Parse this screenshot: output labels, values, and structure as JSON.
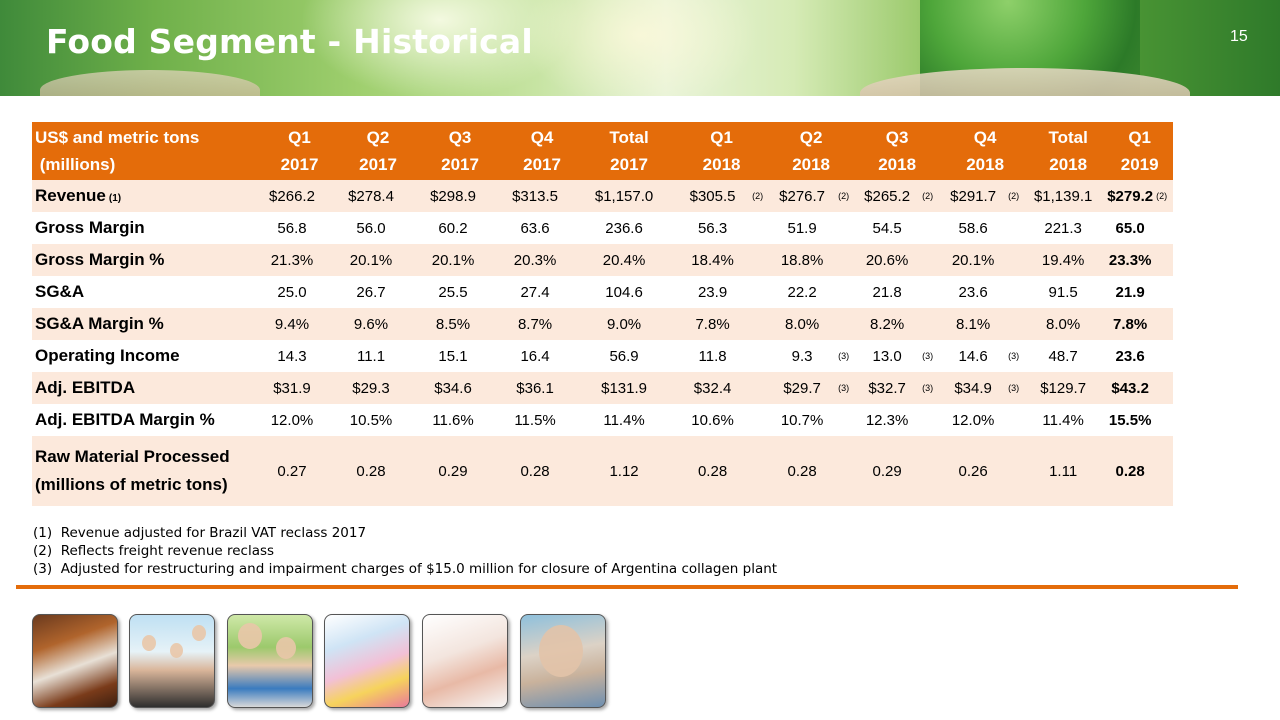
{
  "header": {
    "title": "Food Segment - Historical",
    "page_number": "15"
  },
  "table": {
    "header_label_line1": "US$ and metric tons",
    "header_label_line2": " (millions)",
    "columns": [
      {
        "line1": "Q1",
        "line2": "2017"
      },
      {
        "line1": "Q2",
        "line2": "2017"
      },
      {
        "line1": "Q3",
        "line2": "2017"
      },
      {
        "line1": "Q4",
        "line2": "2017"
      },
      {
        "line1": "Total",
        "line2": "2017"
      },
      {
        "line1": "Q1",
        "line2": "2018"
      },
      {
        "line1": "Q2",
        "line2": "2018"
      },
      {
        "line1": "Q3",
        "line2": "2018"
      },
      {
        "line1": "Q4",
        "line2": "2018"
      },
      {
        "line1": "Total",
        "line2": "2018"
      },
      {
        "line1": "Q1",
        "line2": "2019"
      }
    ],
    "rows": [
      {
        "label": "Revenue",
        "label_note": "(1)",
        "values": [
          "$266.2",
          "$278.4",
          "$298.9",
          "$313.5",
          "$1,157.0",
          "$305.5",
          "$276.7",
          "$265.2",
          "$291.7",
          "$1,139.1",
          "$279.2"
        ],
        "notes": [
          "",
          "",
          "",
          "",
          "",
          "(2)",
          "(2)",
          "(2)",
          "(2)",
          "",
          "(2)"
        ]
      },
      {
        "label": "Gross Margin",
        "label_note": "",
        "values": [
          "56.8",
          "56.0",
          "60.2",
          "63.6",
          "236.6",
          "56.3",
          "51.9",
          "54.5",
          "58.6",
          "221.3",
          "65.0"
        ],
        "notes": [
          "",
          "",
          "",
          "",
          "",
          "",
          "",
          "",
          "",
          "",
          ""
        ]
      },
      {
        "label": "Gross Margin %",
        "label_note": "",
        "values": [
          "21.3%",
          "20.1%",
          "20.1%",
          "20.3%",
          "20.4%",
          "18.4%",
          "18.8%",
          "20.6%",
          "20.1%",
          "19.4%",
          "23.3%"
        ],
        "notes": [
          "",
          "",
          "",
          "",
          "",
          "",
          "",
          "",
          "",
          "",
          ""
        ]
      },
      {
        "label": "SG&A",
        "label_note": "",
        "values": [
          "25.0",
          "26.7",
          "25.5",
          "27.4",
          "104.6",
          "23.9",
          "22.2",
          "21.8",
          "23.6",
          "91.5",
          "21.9"
        ],
        "notes": [
          "",
          "",
          "",
          "",
          "",
          "",
          "",
          "",
          "",
          "",
          ""
        ]
      },
      {
        "label": "SG&A Margin %",
        "label_note": "",
        "values": [
          "9.4%",
          "9.6%",
          "8.5%",
          "8.7%",
          "9.0%",
          "7.8%",
          "8.0%",
          "8.2%",
          "8.1%",
          "8.0%",
          "7.8%"
        ],
        "notes": [
          "",
          "",
          "",
          "",
          "",
          "",
          "",
          "",
          "",
          "",
          ""
        ]
      },
      {
        "label": "Operating Income",
        "label_note": "",
        "values": [
          "14.3",
          "11.1",
          "15.1",
          "16.4",
          "56.9",
          "11.8",
          "9.3",
          "13.0",
          "14.6",
          "48.7",
          "23.6"
        ],
        "notes": [
          "",
          "",
          "",
          "",
          "",
          "",
          "(3)",
          "(3)",
          "(3)",
          "",
          ""
        ]
      },
      {
        "label": "Adj. EBITDA",
        "label_note": "",
        "values": [
          "$31.9",
          "$29.3",
          "$34.6",
          "$36.1",
          "$131.9",
          "$32.4",
          "$29.7",
          "$32.7",
          "$34.9",
          "$129.7",
          "$43.2"
        ],
        "notes": [
          "",
          "",
          "",
          "",
          "",
          "",
          "(3)",
          "(3)",
          "(3)",
          "",
          ""
        ]
      },
      {
        "label": "Adj. EBITDA Margin %",
        "label_note": "",
        "values": [
          "12.0%",
          "10.5%",
          "11.6%",
          "11.5%",
          "11.4%",
          "10.6%",
          "10.7%",
          "12.3%",
          "12.0%",
          "11.4%",
          "15.5%"
        ],
        "notes": [
          "",
          "",
          "",
          "",
          "",
          "",
          "",
          "",
          "",
          "",
          ""
        ]
      },
      {
        "label": "Raw Material Processed",
        "label_line2": "(millions of metric tons)",
        "label_note": "",
        "values": [
          "0.27",
          "0.28",
          "0.29",
          "0.28",
          "1.12",
          "0.28",
          "0.28",
          "0.29",
          "0.26",
          "1.11",
          "0.28"
        ],
        "notes": [
          "",
          "",
          "",
          "",
          "",
          "",
          "",
          "",
          "",
          "",
          ""
        ]
      }
    ]
  },
  "footnotes": [
    "(1)  Revenue adjusted for Brazil VAT reclass 2017",
    "(2)  Reflects freight revenue reclass",
    "(3)  Adjusted for restructuring and impairment charges of $15.0 million for closure of Argentina collagen plant"
  ],
  "colors": {
    "accent": "#e46c0a",
    "row_band": "#fce9dc"
  }
}
